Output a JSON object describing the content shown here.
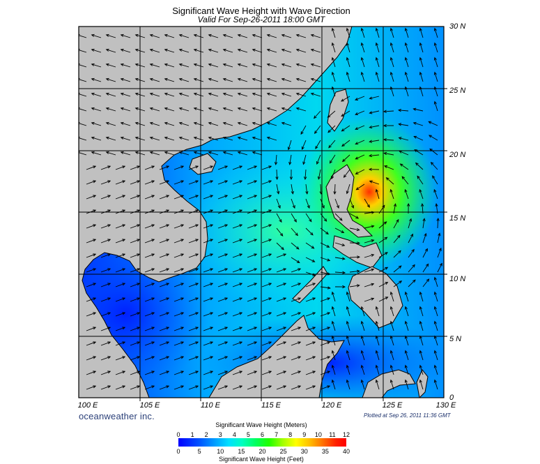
{
  "header": {
    "title": "Significant Wave Height with Wave Direction",
    "subtitle": "Valid For Sep-26-2011 18:00 GMT"
  },
  "axes": {
    "x_ticks": [
      "100 E",
      "105 E",
      "110 E",
      "115 E",
      "120 E",
      "125 E",
      "130 E"
    ],
    "y_ticks": [
      "30 N",
      "25 N",
      "20 N",
      "15 N",
      "10 N",
      "5 N",
      "0"
    ],
    "lon_range": [
      100,
      130
    ],
    "lat_range": [
      0,
      30
    ],
    "grid": true
  },
  "footer": {
    "brand": "oceanweather inc.",
    "plotted": "Plotted at Sep 26, 2011 11:36 GMT"
  },
  "colorbar": {
    "title_meters": "Significant Wave Height (Meters)",
    "title_feet": "Significant Wave Height (Feet)",
    "meters_ticks": [
      "0",
      "1",
      "2",
      "3",
      "4",
      "5",
      "6",
      "7",
      "8",
      "9",
      "10",
      "11",
      "12"
    ],
    "feet_ticks": [
      "0",
      "5",
      "10",
      "15",
      "20",
      "25",
      "30",
      "35",
      "40"
    ],
    "meters_range": [
      0,
      12
    ],
    "feet_range": [
      0,
      40
    ]
  },
  "colors": {
    "land": "#c0c0c0",
    "low_wave": "#0000ff",
    "peak_wave": "#ff0000",
    "arrow": "#000000"
  }
}
